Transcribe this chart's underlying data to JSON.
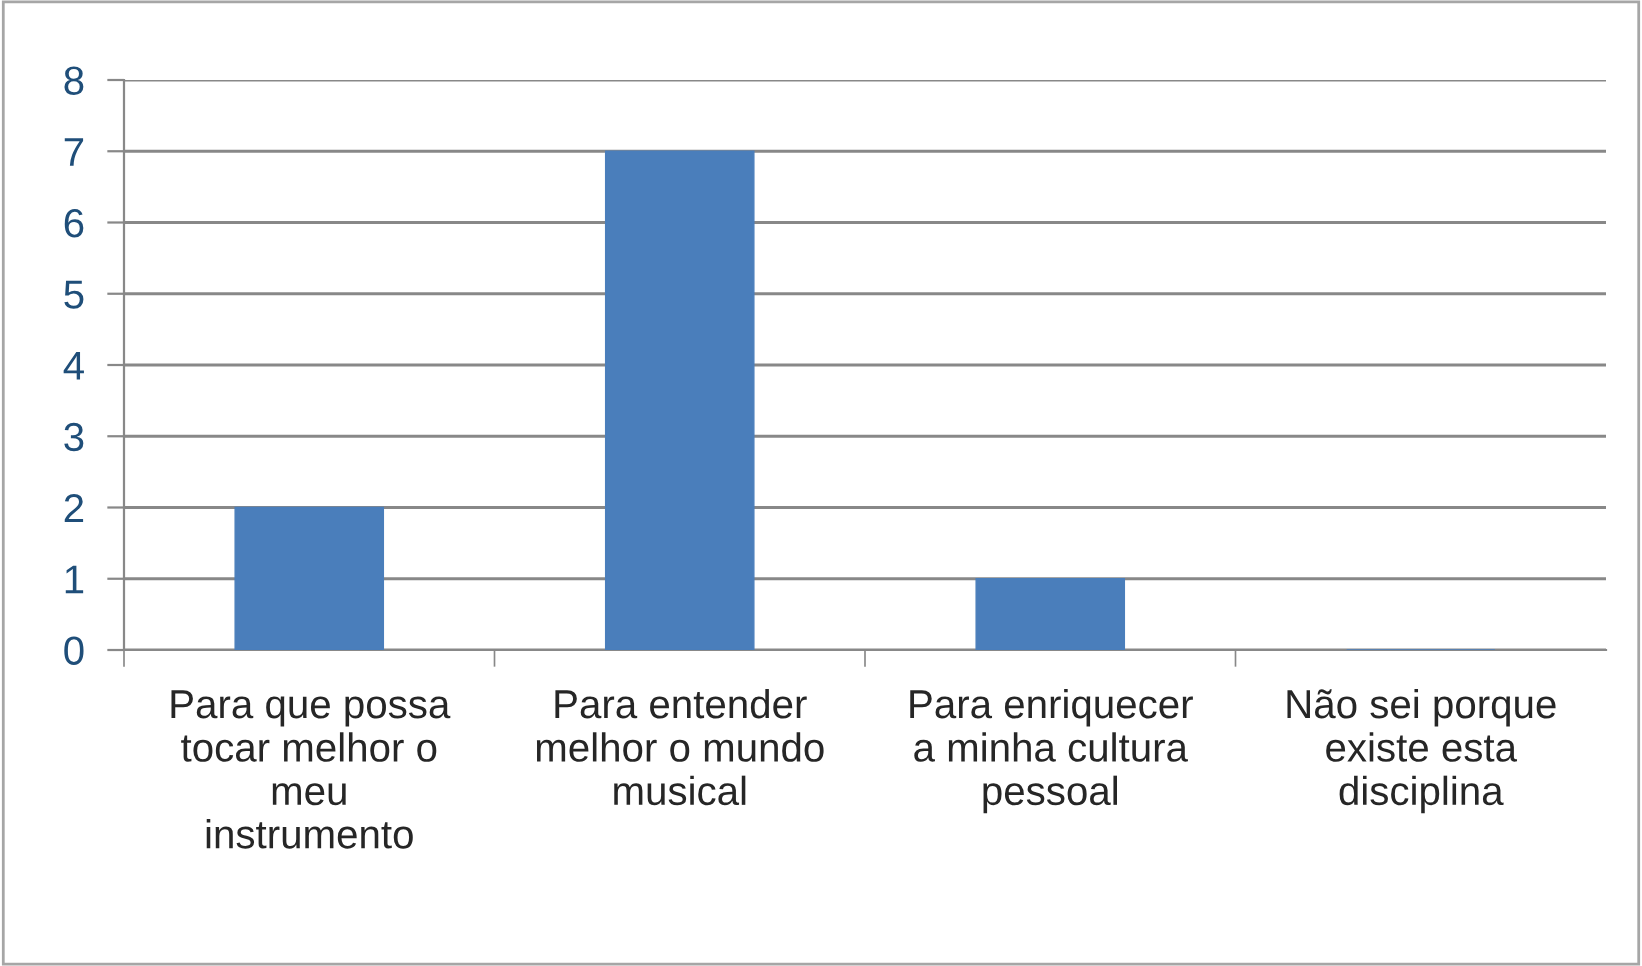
{
  "chart_data": {
    "type": "bar",
    "categories": [
      "Para que possa\ntocar melhor o\nmeu\ninstrumento",
      "Para entender\nmelhor o mundo\nmusical",
      "Para enriquecer\na minha cultura\npessoal",
      "Não sei porque\nexiste esta\ndisciplina"
    ],
    "values": [
      2,
      7,
      1,
      0
    ],
    "color": "#4a7ebb",
    "ylim": [
      0,
      8
    ],
    "yticks": [
      0,
      1,
      2,
      3,
      4,
      5,
      6,
      7,
      8
    ],
    "grid": "y",
    "legend": false
  }
}
